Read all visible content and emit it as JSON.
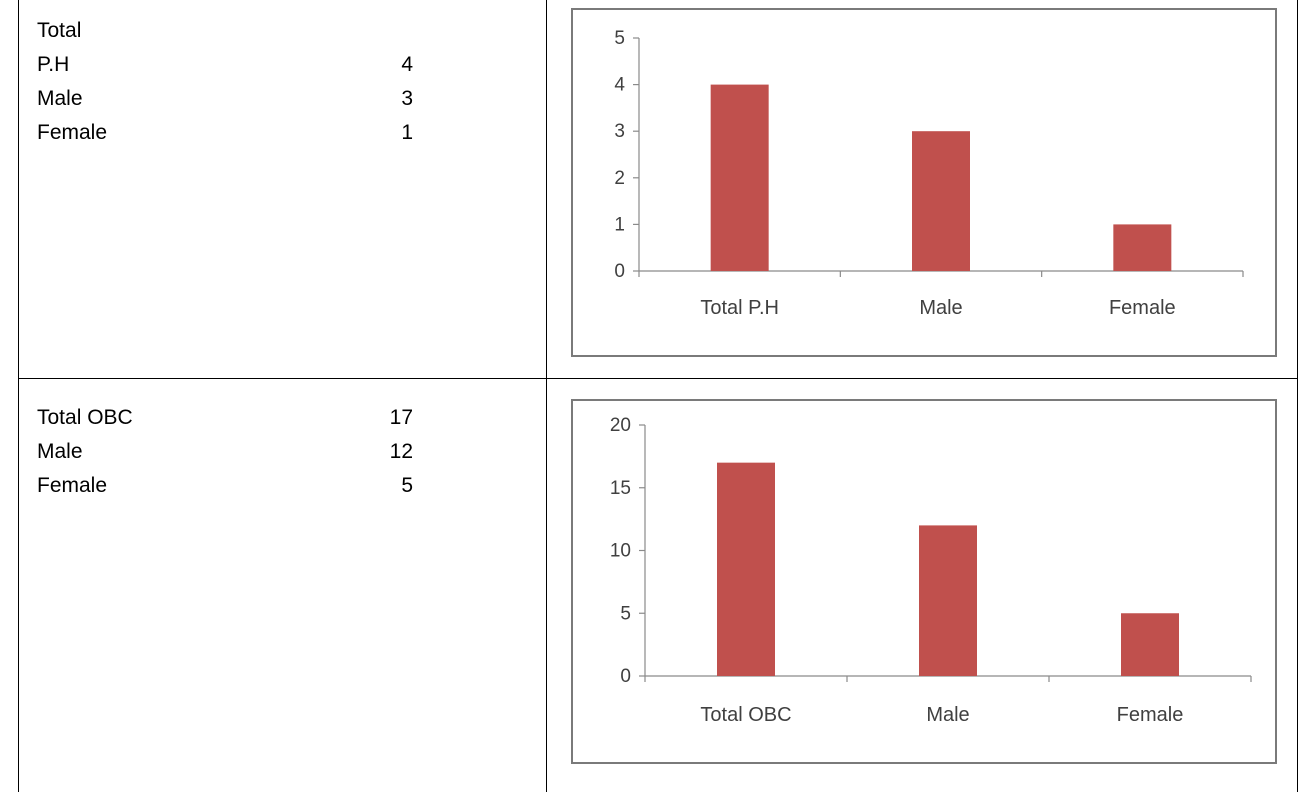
{
  "panels": [
    {
      "lines": [
        {
          "label": "Total",
          "value": ""
        },
        {
          "label": "P.H",
          "value": "4"
        },
        {
          "label": "Male",
          "value": "3"
        },
        {
          "label": "Female",
          "value": "1"
        }
      ]
    },
    {
      "lines": [
        {
          "label": "Total OBC",
          "value": "17"
        },
        {
          "label": "Male",
          "value": "12"
        },
        {
          "label": "Female",
          "value": "5"
        }
      ]
    }
  ],
  "chart_data": [
    {
      "type": "bar",
      "categories": [
        "Total P.H",
        "Male",
        "Female"
      ],
      "values": [
        4,
        3,
        1
      ],
      "title": "",
      "xlabel": "",
      "ylabel": "",
      "ylim": [
        0,
        5
      ],
      "yticks": [
        0,
        1,
        2,
        3,
        4,
        5
      ],
      "grid": false,
      "legend": "none",
      "bar_color": "#c0504d"
    },
    {
      "type": "bar",
      "categories": [
        "Total OBC",
        "Male",
        "Female"
      ],
      "values": [
        17,
        12,
        5
      ],
      "title": "",
      "xlabel": "",
      "ylabel": "",
      "ylim": [
        0,
        20
      ],
      "yticks": [
        0,
        5,
        10,
        15,
        20
      ],
      "grid": false,
      "legend": "none",
      "bar_color": "#c0504d"
    }
  ]
}
